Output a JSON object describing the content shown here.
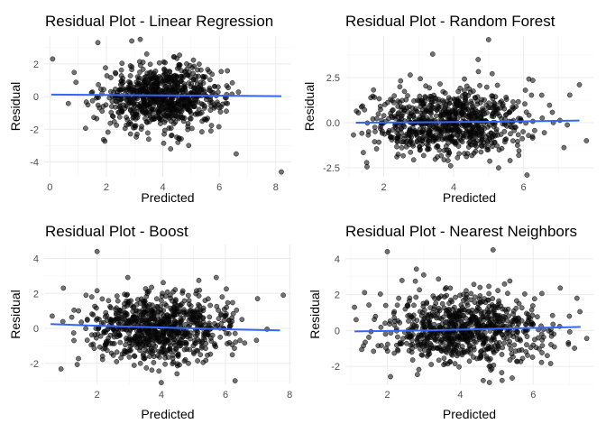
{
  "chart_data": [
    {
      "type": "scatter",
      "title": "Residual Plot - Linear Regression",
      "xlabel": "Predicted",
      "ylabel": "Residual",
      "xlim": [
        -0.2,
        8.55
      ],
      "ylim": [
        -4.9,
        3.7
      ],
      "xticks": [
        0,
        2,
        4,
        6,
        8
      ],
      "yticks": [
        -4,
        -2,
        0,
        2
      ],
      "x_center": 4.0,
      "x_spread": 1.05,
      "trend": [
        [
          0.05,
          0.12
        ],
        [
          2,
          0.1
        ],
        [
          4,
          0.07
        ],
        [
          6,
          0.06
        ],
        [
          8.2,
          0.03
        ]
      ],
      "outliers": [
        [
          0.1,
          2.3
        ],
        [
          8.2,
          -4.6
        ],
        [
          6.6,
          -3.5
        ],
        [
          3.5,
          -2.6
        ],
        [
          2.9,
          3.4
        ],
        [
          1.7,
          3.3
        ],
        [
          3.2,
          3.5
        ]
      ]
    },
    {
      "type": "scatter",
      "title": "Residual Plot - Random Forest",
      "xlabel": "Predicted",
      "ylabel": "Residual",
      "xlim": [
        0.9,
        8.0
      ],
      "ylim": [
        -3.0,
        4.8
      ],
      "xticks": [
        2,
        4,
        6
      ],
      "yticks": [
        -2.5,
        0.0,
        2.5
      ],
      "x_center": 3.9,
      "x_spread": 1.1,
      "trend": [
        [
          1.2,
          0.0
        ],
        [
          3,
          0.02
        ],
        [
          5,
          0.05
        ],
        [
          7.6,
          0.12
        ]
      ],
      "outliers": [
        [
          5.0,
          4.6
        ],
        [
          3.4,
          3.8
        ],
        [
          7.8,
          -1.0
        ],
        [
          6.1,
          -2.9
        ],
        [
          7.6,
          2.1
        ],
        [
          4.7,
          3.5
        ]
      ]
    },
    {
      "type": "scatter",
      "title": "Residual Plot - Boost",
      "xlabel": "Predicted",
      "ylabel": "Residual",
      "xlim": [
        0.35,
        8.05
      ],
      "ylim": [
        -3.2,
        4.8
      ],
      "xticks": [
        2,
        4,
        6,
        8
      ],
      "yticks": [
        -2,
        0,
        2,
        4
      ],
      "x_center": 3.9,
      "x_spread": 1.15,
      "trend": [
        [
          0.55,
          0.25
        ],
        [
          2,
          0.15
        ],
        [
          4,
          0.05
        ],
        [
          6,
          -0.05
        ],
        [
          7.7,
          -0.12
        ]
      ],
      "outliers": [
        [
          2.0,
          4.4
        ],
        [
          7.8,
          1.9
        ],
        [
          0.6,
          0.7
        ],
        [
          6.3,
          -3.0
        ],
        [
          7.0,
          1.7
        ],
        [
          4.0,
          -3.1
        ]
      ]
    },
    {
      "type": "scatter",
      "title": "Residual Plot - Nearest Neighbors",
      "xlabel": "Predicted",
      "ylabel": "Residual",
      "xlim": [
        0.85,
        7.65
      ],
      "ylim": [
        -3.0,
        4.8
      ],
      "xticks": [
        2,
        4,
        6
      ],
      "yticks": [
        -2,
        0,
        2,
        4
      ],
      "x_center": 4.1,
      "x_spread": 1.15,
      "trend": [
        [
          1.1,
          -0.05
        ],
        [
          3,
          0.0
        ],
        [
          5,
          0.1
        ],
        [
          7.3,
          0.2
        ]
      ],
      "outliers": [
        [
          2.0,
          4.4
        ],
        [
          4.9,
          4.5
        ],
        [
          1.1,
          1.3
        ],
        [
          7.2,
          1.8
        ],
        [
          4.8,
          -2.9
        ],
        [
          3.0,
          3.1
        ]
      ]
    }
  ]
}
